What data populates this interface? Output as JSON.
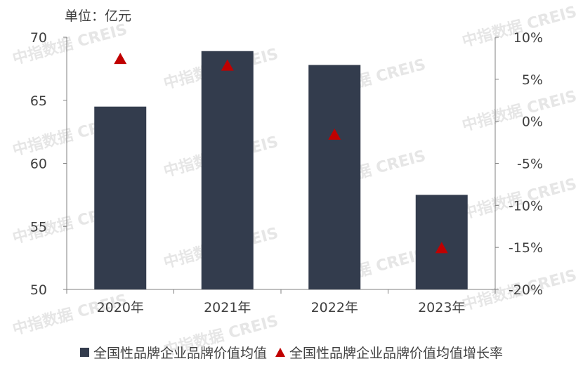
{
  "watermark": "中指数据 CREIS",
  "unit_label": "单位：亿元",
  "chart_data": {
    "type": "bar",
    "categories": [
      "2020年",
      "2021年",
      "2022年",
      "2023年"
    ],
    "series": [
      {
        "name": "全国性品牌企业品牌价值均值",
        "type": "bar",
        "axis": "left",
        "color": "#333c4d",
        "values": [
          64.5,
          68.9,
          67.8,
          57.5
        ]
      },
      {
        "name": "全国性品牌企业品牌价值均值增长率",
        "type": "scatter",
        "marker": "triangle",
        "axis": "right",
        "color": "#c00000",
        "values": [
          7.4,
          6.6,
          -1.6,
          -15.1
        ]
      }
    ],
    "y_left": {
      "min": 50,
      "max": 70,
      "step": 5,
      "ticks": [
        "50",
        "55",
        "60",
        "65",
        "70"
      ]
    },
    "y_right": {
      "min": -20,
      "max": 10,
      "step": 5,
      "ticks": [
        "-20%",
        "-15%",
        "-10%",
        "-5%",
        "0%",
        "5%",
        "10%"
      ]
    },
    "legend_position": "bottom"
  }
}
